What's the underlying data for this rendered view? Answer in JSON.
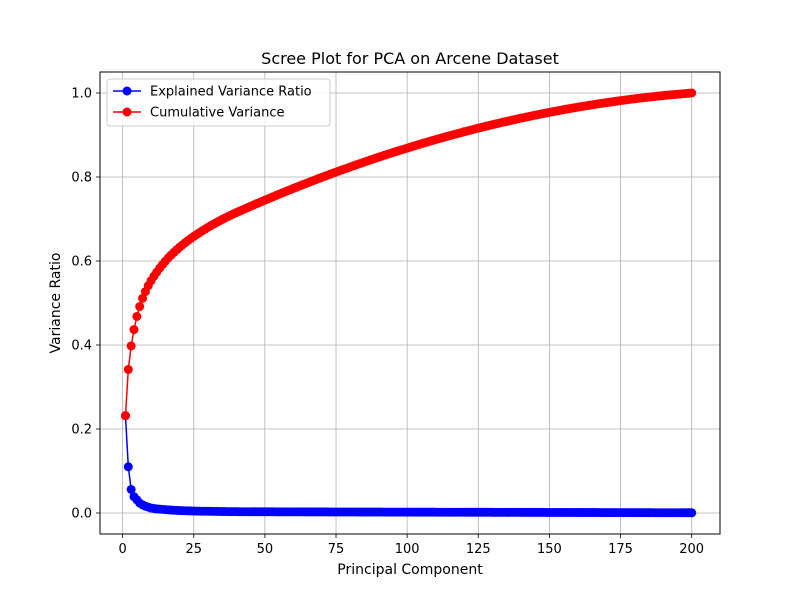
{
  "chart_data": {
    "type": "line",
    "title": "Scree Plot for PCA on Arcene Dataset",
    "xlabel": "Principal Component",
    "ylabel": "Variance Ratio",
    "xlim": [
      -7.95,
      209.95
    ],
    "ylim": [
      -0.05,
      1.05
    ],
    "xticks": [
      0,
      25,
      50,
      75,
      100,
      125,
      150,
      175,
      200
    ],
    "yticks": [
      0.0,
      0.2,
      0.4,
      0.6,
      0.8,
      1.0
    ],
    "grid": true,
    "legend_position": "upper-left",
    "x_range": [
      1,
      200
    ],
    "series": [
      {
        "name": "Explained Variance Ratio",
        "color": "#0000ff",
        "marker": "circle",
        "values_head": [
          0.215,
          0.102,
          0.052,
          0.036,
          0.029,
          0.022,
          0.018,
          0.015,
          0.013,
          0.011,
          0.01,
          0.009,
          0.0085,
          0.008,
          0.0075,
          0.007,
          0.0065,
          0.006,
          0.0058,
          0.0055,
          0.0052,
          0.005,
          0.0048,
          0.0046,
          0.0044,
          0.0042,
          0.0041,
          0.004,
          0.0039,
          0.0038,
          0.0037,
          0.0036,
          0.0035,
          0.0034,
          0.0033,
          0.0032,
          0.0031,
          0.003,
          0.003,
          0.0029
        ],
        "tail_from_41": [
          0.0028,
          0.0005
        ]
      },
      {
        "name": "Cumulative Variance",
        "color": "#ff0000",
        "marker": "circle",
        "cumulative_of": "Explained Variance Ratio",
        "final_value": 1.0
      }
    ]
  }
}
